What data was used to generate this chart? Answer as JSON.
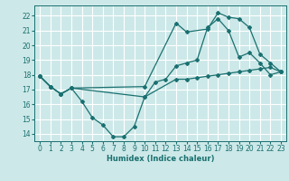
{
  "bg_color": "#cde8e8",
  "line_color": "#1a7070",
  "grid_color": "#ffffff",
  "xlabel": "Humidex (Indice chaleur)",
  "xlim": [
    -0.5,
    23.5
  ],
  "ylim": [
    13.5,
    22.7
  ],
  "yticks": [
    14,
    15,
    16,
    17,
    18,
    19,
    20,
    21,
    22
  ],
  "xticks": [
    0,
    1,
    2,
    3,
    4,
    5,
    6,
    7,
    8,
    9,
    10,
    11,
    12,
    13,
    14,
    15,
    16,
    17,
    18,
    19,
    20,
    21,
    22,
    23
  ],
  "line1_x": [
    0,
    1,
    2,
    3,
    4,
    5,
    6,
    7,
    8,
    9,
    10,
    11,
    12,
    13,
    14,
    15,
    16,
    17,
    18,
    19,
    20,
    21,
    22,
    23
  ],
  "line1_y": [
    17.9,
    17.2,
    16.7,
    17.1,
    16.2,
    15.1,
    14.6,
    13.8,
    13.8,
    14.5,
    16.5,
    17.5,
    17.7,
    18.6,
    18.8,
    19.0,
    21.2,
    21.8,
    21.0,
    19.2,
    19.5,
    18.8,
    18.0,
    18.2
  ],
  "line2_x": [
    0,
    1,
    2,
    3,
    10,
    13,
    14,
    16,
    17,
    18,
    19,
    20,
    21,
    22,
    23
  ],
  "line2_y": [
    17.9,
    17.2,
    16.7,
    17.1,
    17.2,
    21.5,
    20.9,
    21.1,
    22.2,
    21.9,
    21.8,
    21.2,
    19.4,
    18.8,
    18.2
  ],
  "line3_x": [
    0,
    1,
    2,
    3,
    10,
    13,
    14,
    15,
    16,
    17,
    18,
    19,
    20,
    21,
    22,
    23
  ],
  "line3_y": [
    17.9,
    17.2,
    16.7,
    17.1,
    16.5,
    17.7,
    17.7,
    17.8,
    17.9,
    18.0,
    18.1,
    18.2,
    18.3,
    18.4,
    18.5,
    18.2
  ]
}
